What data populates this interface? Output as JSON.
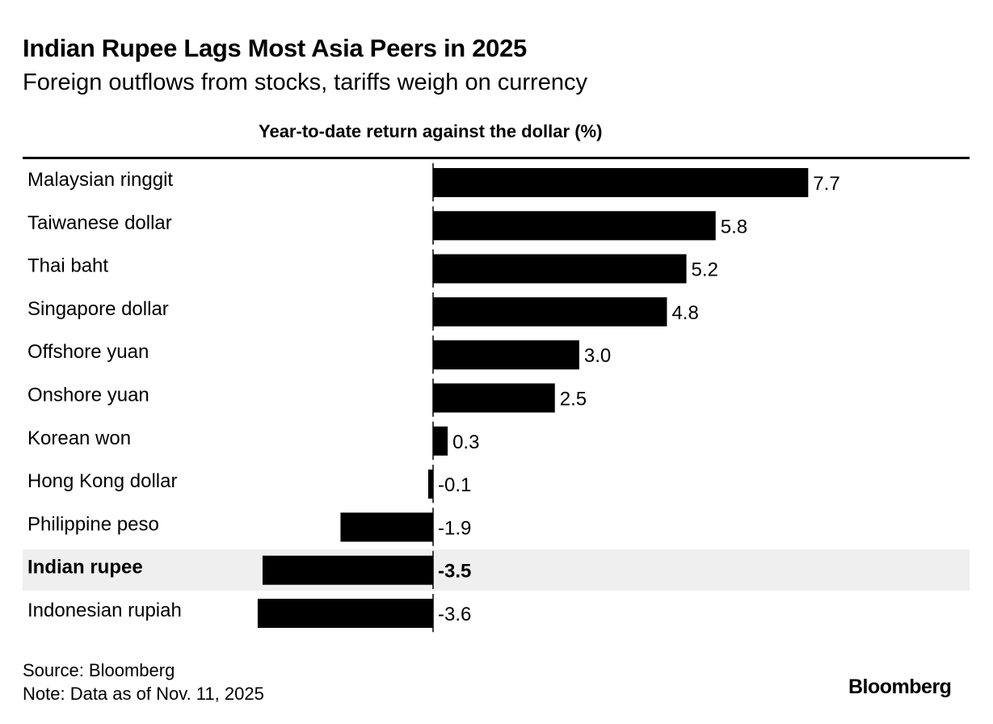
{
  "title": "Indian Rupee Lags Most Asia Peers in 2025",
  "subtitle": "Foreign outflows from stocks, tariffs weigh on currency",
  "source": "Source: Bloomberg",
  "note": "Note: Data as of Nov. 11, 2025",
  "logo": "Bloomberg",
  "chart_data": {
    "type": "bar",
    "orientation": "horizontal",
    "title": "Year-to-date return against the dollar (%)",
    "categories": [
      "Malaysian ringgit",
      "Taiwanese dollar",
      "Thai baht",
      "Singapore dollar",
      "Offshore yuan",
      "Onshore yuan",
      "Korean won",
      "Hong Kong dollar",
      "Philippine peso",
      "Indian rupee",
      "Indonesian rupiah"
    ],
    "values": [
      7.7,
      5.8,
      5.2,
      4.8,
      3.0,
      2.5,
      0.3,
      -0.1,
      -1.9,
      -3.5,
      -3.6
    ],
    "value_labels": [
      "7.7",
      "5.8",
      "5.2",
      "4.8",
      "3.0",
      "2.5",
      "0.3",
      "-0.1",
      "-1.9",
      "-3.5",
      "-3.6"
    ],
    "highlight": "Indian rupee",
    "bar_color": "#000000",
    "highlight_bg": "#efefef",
    "grid": false
  }
}
